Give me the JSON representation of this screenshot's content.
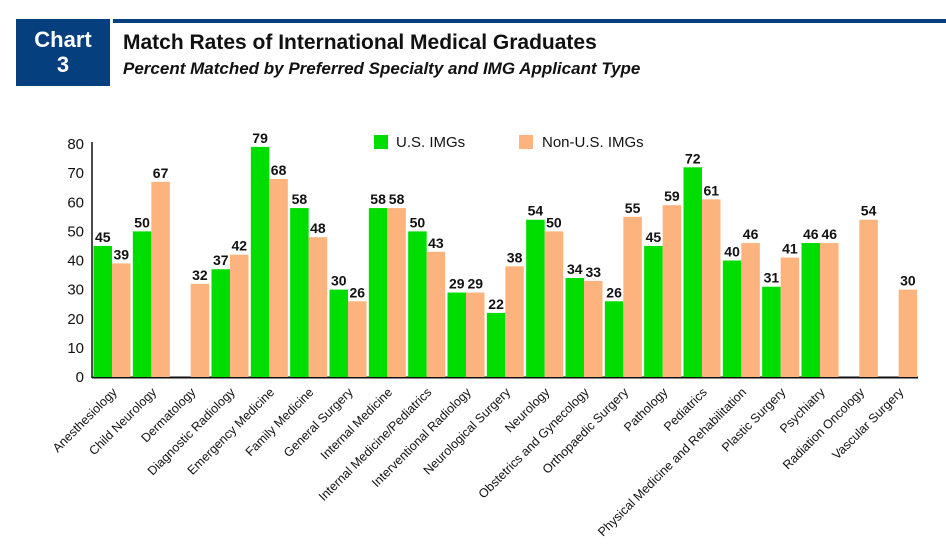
{
  "header": {
    "badge_line1": "Chart",
    "badge_line2": "3",
    "title": "Match Rates of International Medical Graduates",
    "subtitle": "Percent Matched by Preferred Specialty and IMG Applicant Type"
  },
  "colors": {
    "us_imgs": "#00dd00",
    "non_us_imgs": "#fdb37e",
    "brand": "#053f7d"
  },
  "chart_data": {
    "type": "bar",
    "title": "Match Rates of International Medical Graduates",
    "subtitle": "Percent Matched by Preferred Specialty and IMG Applicant Type",
    "xlabel": "",
    "ylabel": "",
    "ylim": [
      0,
      80
    ],
    "yticks": [
      0,
      10,
      20,
      30,
      40,
      50,
      60,
      70,
      80
    ],
    "grid": false,
    "legend_position": "top-center",
    "categories": [
      "Anesthesiology",
      "Child Neurology",
      "Dermatology",
      "Diagnostic Radiology",
      "Emergency Medicine",
      "Family Medicine",
      "General Surgery",
      "Internal Medicine",
      "Internal Medicine/Pediatrics",
      "Interventional Radiology",
      "Neurological Surgery",
      "Neurology",
      "Obstetrics and Gynecology",
      "Orthopaedic Surgery",
      "Pathology",
      "Pediatrics",
      "Physical Medicine and Rehabilitation",
      "Plastic Surgery",
      "Psychiatry",
      "Radiation Oncology",
      "Vascular Surgery"
    ],
    "series": [
      {
        "name": "U.S. IMGs",
        "values": [
          45,
          50,
          null,
          37,
          79,
          58,
          30,
          58,
          50,
          29,
          22,
          54,
          34,
          26,
          45,
          72,
          40,
          31,
          46,
          null,
          null
        ]
      },
      {
        "name": "Non-U.S. IMGs",
        "values": [
          39,
          67,
          32,
          42,
          68,
          48,
          26,
          58,
          43,
          29,
          38,
          50,
          33,
          55,
          59,
          61,
          46,
          41,
          46,
          54,
          30
        ]
      }
    ]
  }
}
